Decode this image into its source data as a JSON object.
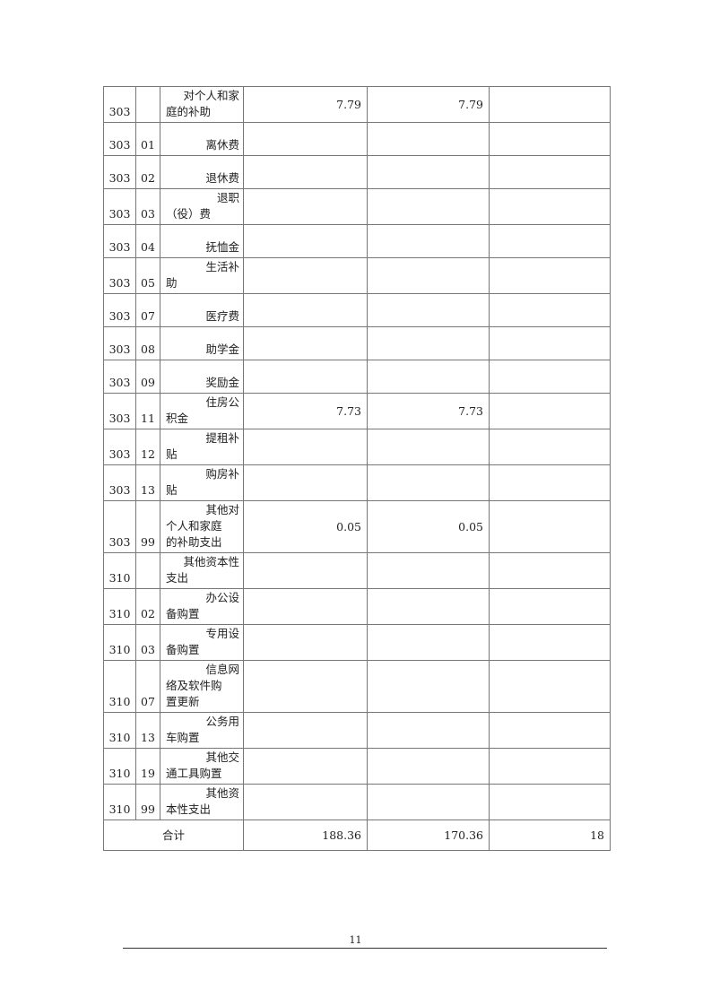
{
  "table": {
    "rows": [
      {
        "c1": "303",
        "c2": "",
        "name": [
          "对个人和家",
          "庭的补助"
        ],
        "v1": "7.79",
        "v2": "7.79",
        "v3": ""
      },
      {
        "c1": "303",
        "c2": "01",
        "name": [
          "离休费"
        ],
        "v1": "",
        "v2": "",
        "v3": ""
      },
      {
        "c1": "303",
        "c2": "02",
        "name": [
          "退休费"
        ],
        "v1": "",
        "v2": "",
        "v3": ""
      },
      {
        "c1": "303",
        "c2": "03",
        "name": [
          "退职",
          "（役）费"
        ],
        "v1": "",
        "v2": "",
        "v3": ""
      },
      {
        "c1": "303",
        "c2": "04",
        "name": [
          "抚恤金"
        ],
        "v1": "",
        "v2": "",
        "v3": ""
      },
      {
        "c1": "303",
        "c2": "05",
        "name": [
          "生活补",
          "助"
        ],
        "v1": "",
        "v2": "",
        "v3": ""
      },
      {
        "c1": "303",
        "c2": "07",
        "name": [
          "医疗费"
        ],
        "v1": "",
        "v2": "",
        "v3": ""
      },
      {
        "c1": "303",
        "c2": "08",
        "name": [
          "助学金"
        ],
        "v1": "",
        "v2": "",
        "v3": ""
      },
      {
        "c1": "303",
        "c2": "09",
        "name": [
          "奖励金"
        ],
        "v1": "",
        "v2": "",
        "v3": ""
      },
      {
        "c1": "303",
        "c2": "11",
        "name": [
          "住房公",
          "积金"
        ],
        "v1": "7.73",
        "v2": "7.73",
        "v3": ""
      },
      {
        "c1": "303",
        "c2": "12",
        "name": [
          "提租补",
          "贴"
        ],
        "v1": "",
        "v2": "",
        "v3": ""
      },
      {
        "c1": "303",
        "c2": "13",
        "name": [
          "购房补",
          "贴"
        ],
        "v1": "",
        "v2": "",
        "v3": ""
      },
      {
        "c1": "303",
        "c2": "99",
        "name": [
          "其他对",
          "个人和家庭",
          "的补助支出"
        ],
        "v1": "0.05",
        "v2": "0.05",
        "v3": ""
      },
      {
        "c1": "310",
        "c2": "",
        "name": [
          "其他资本性",
          "支出"
        ],
        "v1": "",
        "v2": "",
        "v3": ""
      },
      {
        "c1": "310",
        "c2": "02",
        "name": [
          "办公设",
          "备购置"
        ],
        "v1": "",
        "v2": "",
        "v3": ""
      },
      {
        "c1": "310",
        "c2": "03",
        "name": [
          "专用设",
          "备购置"
        ],
        "v1": "",
        "v2": "",
        "v3": ""
      },
      {
        "c1": "310",
        "c2": "07",
        "name": [
          "信息网",
          "络及软件购",
          "置更新"
        ],
        "v1": "",
        "v2": "",
        "v3": ""
      },
      {
        "c1": "310",
        "c2": "13",
        "name": [
          "公务用",
          "车购置"
        ],
        "v1": "",
        "v2": "",
        "v3": ""
      },
      {
        "c1": "310",
        "c2": "19",
        "name": [
          "其他交",
          "通工具购置"
        ],
        "v1": "",
        "v2": "",
        "v3": ""
      },
      {
        "c1": "310",
        "c2": "99",
        "name": [
          "其他资",
          "本性支出"
        ],
        "v1": "",
        "v2": "",
        "v3": ""
      }
    ],
    "total": {
      "label": "合计",
      "v1": "188.36",
      "v2": "170.36",
      "v3": "18"
    }
  },
  "footer": {
    "page_number": "11"
  }
}
